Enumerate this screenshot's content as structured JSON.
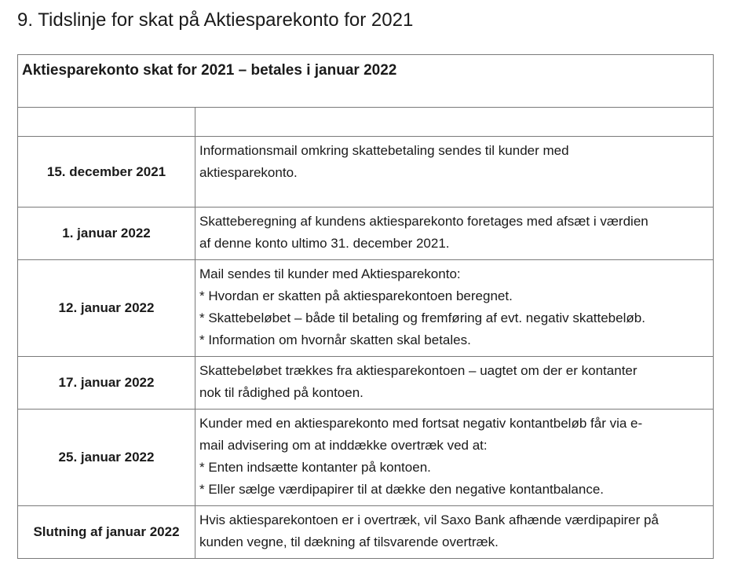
{
  "heading": "9. Tidslinje for skat på Aktiesparekonto for 2021",
  "table": {
    "title": "Aktiesparekonto skat for 2021 – betales i januar 2022",
    "rows": [
      {
        "date": "15. december 2021",
        "lines": [
          "Informationsmail omkring skattebetaling sendes til kunder med",
          "aktiesparekonto."
        ]
      },
      {
        "date": "1. januar 2022",
        "lines": [
          "Skatteberegning af kundens aktiesparekonto foretages med afsæt i  værdien",
          "af denne konto ultimo 31. december 2021."
        ]
      },
      {
        "date": "12. januar 2022",
        "lines": [
          "Mail sendes til kunder med Aktiesparekonto:",
          "* Hvordan er skatten på aktiesparekontoen beregnet.",
          "* Skattebeløbet – både til betaling og fremføring af evt. negativ skattebeløb.",
          "* Information om hvornår skatten skal betales."
        ]
      },
      {
        "date": "17. januar 2022",
        "lines": [
          "Skattebeløbet trækkes fra aktiesparekontoen – uagtet om der er kontanter",
          "nok til rådighed på kontoen."
        ]
      },
      {
        "date": "25. januar 2022",
        "lines": [
          "Kunder med en aktiesparekonto med fortsat negativ kontantbeløb får via e-",
          "mail advisering om at inddække overtræk ved at:",
          "* Enten indsætte kontanter på kontoen.",
          "* Eller sælge værdipapirer til at dække den negative kontantbalance."
        ]
      },
      {
        "date": "Slutning af januar 2022",
        "lines": [
          "Hvis aktiesparekontoen er i overtræk, vil Saxo Bank afhænde værdipapirer på",
          "kunden vegne, til dækning af tilsvarende overtræk."
        ]
      }
    ]
  }
}
